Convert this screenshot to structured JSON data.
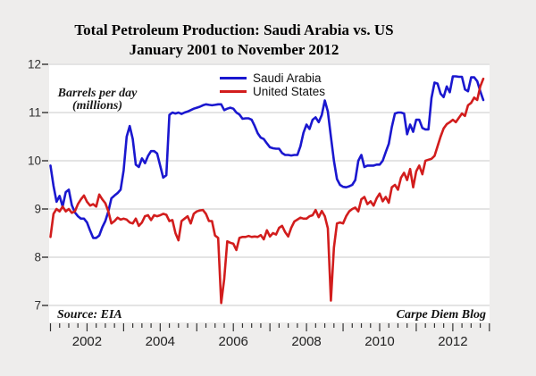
{
  "title": {
    "line1": "Total Petroleum Production: Saudi Arabia vs. US",
    "line2": "January 2001 to November 2012"
  },
  "legend": [
    {
      "label": "Saudi Arabia",
      "color": "#1a17cf"
    },
    {
      "label": "United States",
      "color": "#d21d1d"
    }
  ],
  "y_axis": {
    "title_line1": "Barrels per day",
    "title_line2": "(millions)",
    "tick_values": [
      7,
      8,
      9,
      10,
      11,
      12
    ]
  },
  "x_axis": {
    "year_labels": [
      "2002",
      "2004",
      "2006",
      "2008",
      "2010",
      "2012"
    ]
  },
  "annotations": {
    "source": "Source: EIA",
    "credit": "Carpe Diem Blog"
  },
  "colors": {
    "background": "#eeedec",
    "plot_background": "#ffffff",
    "gridline": "#c9c9c9",
    "tick": "#333333",
    "saudi_line": "#1a17cf",
    "us_line": "#d21d1d"
  },
  "chart_data": {
    "type": "line",
    "title": "Total Petroleum Production: Saudi Arabia vs. US",
    "subtitle": "January 2001 to November 2012",
    "ylabel": "Barrels per day (millions)",
    "ylim": [
      7,
      12
    ],
    "x_unit": "month",
    "x_start": "2001-01",
    "x_end": "2012-11",
    "grid": "horizontal",
    "legend_position": "top-center",
    "series": [
      {
        "name": "Saudi Arabia",
        "color": "#1a17cf",
        "values": [
          9.9,
          9.48,
          9.15,
          9.27,
          9.05,
          9.35,
          9.4,
          9.08,
          8.93,
          8.85,
          8.8,
          8.8,
          8.72,
          8.55,
          8.4,
          8.4,
          8.45,
          8.62,
          8.75,
          8.95,
          9.22,
          9.28,
          9.33,
          9.4,
          9.8,
          10.5,
          10.72,
          10.45,
          9.92,
          9.87,
          10.05,
          9.95,
          10.1,
          10.2,
          10.2,
          10.15,
          9.9,
          9.65,
          9.7,
          10.95,
          11.0,
          10.98,
          11.0,
          10.97,
          11.0,
          11.02,
          11.05,
          11.08,
          11.1,
          11.12,
          11.15,
          11.17,
          11.16,
          11.15,
          11.16,
          11.17,
          11.17,
          11.05,
          11.08,
          11.1,
          11.08,
          11.0,
          10.96,
          10.87,
          10.88,
          10.88,
          10.85,
          10.72,
          10.57,
          10.48,
          10.45,
          10.36,
          10.28,
          10.26,
          10.25,
          10.25,
          10.16,
          10.12,
          10.12,
          10.11,
          10.12,
          10.12,
          10.3,
          10.58,
          10.75,
          10.66,
          10.85,
          10.9,
          10.8,
          10.95,
          11.25,
          11.02,
          10.5,
          10.0,
          9.62,
          9.5,
          9.46,
          9.45,
          9.47,
          9.5,
          9.6,
          10.0,
          10.12,
          9.87,
          9.9,
          9.9,
          9.9,
          9.92,
          9.92,
          10.0,
          10.18,
          10.35,
          10.7,
          10.98,
          11.0,
          11.0,
          10.98,
          10.55,
          10.75,
          10.6,
          10.85,
          10.85,
          10.68,
          10.65,
          10.65,
          11.3,
          11.62,
          11.6,
          11.39,
          11.32,
          11.54,
          11.42,
          11.75,
          11.75,
          11.74,
          11.74,
          11.48,
          11.44,
          11.73,
          11.73,
          11.65,
          11.44,
          11.26
        ]
      },
      {
        "name": "United States",
        "color": "#d21d1d",
        "values": [
          8.42,
          8.9,
          9.0,
          8.95,
          9.05,
          8.95,
          9.0,
          8.92,
          8.95,
          9.1,
          9.2,
          9.28,
          9.15,
          9.07,
          9.1,
          9.05,
          9.3,
          9.2,
          9.12,
          8.95,
          8.7,
          8.75,
          8.82,
          8.78,
          8.8,
          8.78,
          8.72,
          8.7,
          8.8,
          8.65,
          8.72,
          8.85,
          8.87,
          8.77,
          8.87,
          8.85,
          8.87,
          8.9,
          8.88,
          8.75,
          8.77,
          8.5,
          8.35,
          8.75,
          8.8,
          8.85,
          8.7,
          8.9,
          8.95,
          8.97,
          8.98,
          8.9,
          8.75,
          8.75,
          8.45,
          8.4,
          7.05,
          7.55,
          8.33,
          8.3,
          8.28,
          8.15,
          8.4,
          8.42,
          8.42,
          8.44,
          8.42,
          8.43,
          8.42,
          8.46,
          8.37,
          8.56,
          8.43,
          8.5,
          8.47,
          8.61,
          8.65,
          8.52,
          8.43,
          8.61,
          8.74,
          8.78,
          8.82,
          8.8,
          8.8,
          8.85,
          8.87,
          8.98,
          8.83,
          8.96,
          8.85,
          8.6,
          7.1,
          8.2,
          8.7,
          8.72,
          8.7,
          8.85,
          8.95,
          9.0,
          9.03,
          8.95,
          9.2,
          9.25,
          9.1,
          9.16,
          9.07,
          9.22,
          9.32,
          9.16,
          9.25,
          9.13,
          9.45,
          9.5,
          9.4,
          9.65,
          9.75,
          9.6,
          9.83,
          9.45,
          9.78,
          9.9,
          9.72,
          10.0,
          10.02,
          10.04,
          10.1,
          10.3,
          10.5,
          10.67,
          10.76,
          10.8,
          10.85,
          10.8,
          10.89,
          10.98,
          10.93,
          11.15,
          11.2,
          11.31,
          11.26,
          11.54,
          11.7
        ]
      }
    ]
  }
}
